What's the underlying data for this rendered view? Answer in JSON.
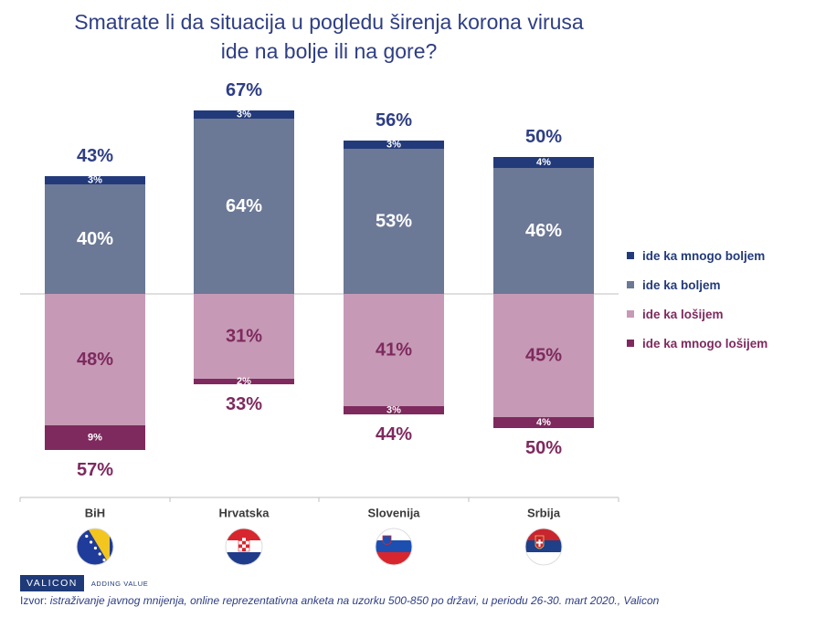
{
  "title_line1": "Smatrate li da situacija u pogledu širenja korona virusa",
  "title_line2": "ide na bolje ili na gore?",
  "chart_data": {
    "type": "bar",
    "stacked": "diverging",
    "categories": [
      "BiH",
      "Hrvatska",
      "Slovenija",
      "Srbija"
    ],
    "series": [
      {
        "name": "ide ka mnogo boljem",
        "direction": "up",
        "color": "#233a7a",
        "values": [
          3,
          3,
          3,
          4
        ],
        "labels": [
          "3%",
          "3%",
          "3%",
          "4%"
        ]
      },
      {
        "name": "ide ka boljem",
        "direction": "up",
        "color": "#6b7896",
        "values": [
          40,
          64,
          53,
          46
        ],
        "labels": [
          "40%",
          "64%",
          "53%",
          "46%"
        ]
      },
      {
        "name": "ide ka lošijem",
        "direction": "down",
        "color": "#c69ab6",
        "values": [
          48,
          31,
          41,
          45
        ],
        "labels": [
          "48%",
          "31%",
          "41%",
          "45%"
        ]
      },
      {
        "name": "ide ka mnogo lošijem",
        "direction": "down",
        "color": "#7e2a5e",
        "values": [
          9,
          2,
          3,
          4
        ],
        "labels": [
          "9%",
          "2%",
          "3%",
          "4%"
        ]
      }
    ],
    "positive_totals": [
      "43%",
      "67%",
      "56%",
      "50%"
    ],
    "negative_totals": [
      "57%",
      "33%",
      "44%",
      "50%"
    ],
    "positive_total_color": "#2e3e83",
    "negative_total_color": "#7e2a5e",
    "legend_position": "right",
    "flag_icons": [
      "flag-bih-icon",
      "flag-croatia-icon",
      "flag-slovenia-icon",
      "flag-serbia-icon"
    ]
  },
  "legend": [
    {
      "label": "ide ka mnogo boljem",
      "color": "#233a7a",
      "text_color": "#233a7a"
    },
    {
      "label": "ide ka boljem",
      "color": "#6b7896",
      "text_color": "#233a7a"
    },
    {
      "label": "ide ka lošijem",
      "color": "#c69ab6",
      "text_color": "#7e2a5e"
    },
    {
      "label": "ide ka mnogo lošijem",
      "color": "#7e2a5e",
      "text_color": "#7e2a5e"
    }
  ],
  "footer": {
    "brand": "VALICON",
    "tagline": "ADDING VALUE",
    "source_label": "Izvor:",
    "source_text": "istraživanje javnog mnijenja, online reprezentativna anketa na uzorku 500-850 po državi, u periodu 26-30. mart 2020., Valicon"
  }
}
